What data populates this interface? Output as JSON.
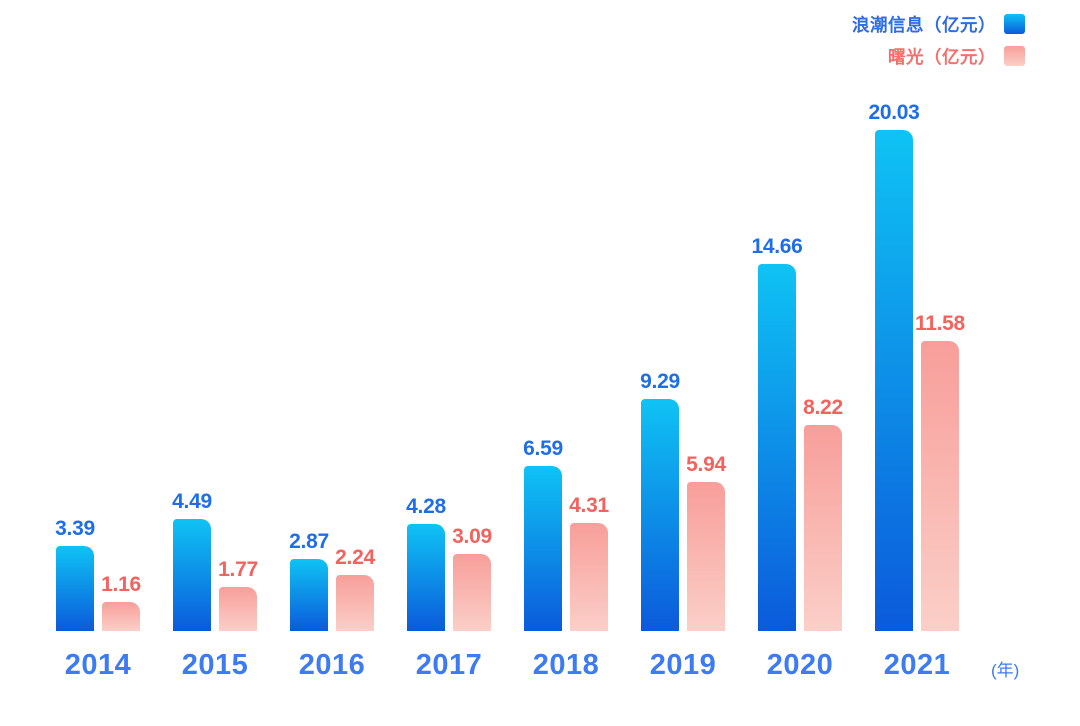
{
  "colors": {
    "background": "#ffffff",
    "blue_bar_top": "#0fc3f4",
    "blue_bar_bottom": "#0b5adb",
    "pink_bar_top": "#f89e9a",
    "pink_bar_bottom": "#fbcfc8",
    "blue_value_label": "#1e6ee8",
    "pink_value_label": "#f4625e",
    "year_label": "#3c7bf2",
    "legend_blue_text": "#2e6ce3",
    "legend_pink_text": "#f3706c"
  },
  "legend": {
    "position": "top-right",
    "items": [
      {
        "id": "langchao",
        "label": "浪潮信息（亿元）"
      },
      {
        "id": "shuguang",
        "label": "曙光（亿元）"
      }
    ]
  },
  "chart_data": {
    "type": "bar",
    "title": "",
    "categories": [
      "2014",
      "2015",
      "2016",
      "2017",
      "2018",
      "2019",
      "2020",
      "2021"
    ],
    "series": [
      {
        "id": "langchao",
        "name": "浪潮信息（亿元）",
        "values": [
          3.39,
          4.49,
          2.87,
          4.28,
          6.59,
          9.29,
          14.66,
          20.03
        ]
      },
      {
        "id": "shuguang",
        "name": "曙光（亿元）",
        "values": [
          1.16,
          1.77,
          2.24,
          3.09,
          4.31,
          5.94,
          8.22,
          11.58
        ]
      }
    ],
    "value_labels_shown": true,
    "xlabel": "(年)",
    "ylabel": "",
    "ylim": [
      0,
      21
    ],
    "grid": false,
    "axes_hidden": true,
    "legend_position": "top-right"
  }
}
